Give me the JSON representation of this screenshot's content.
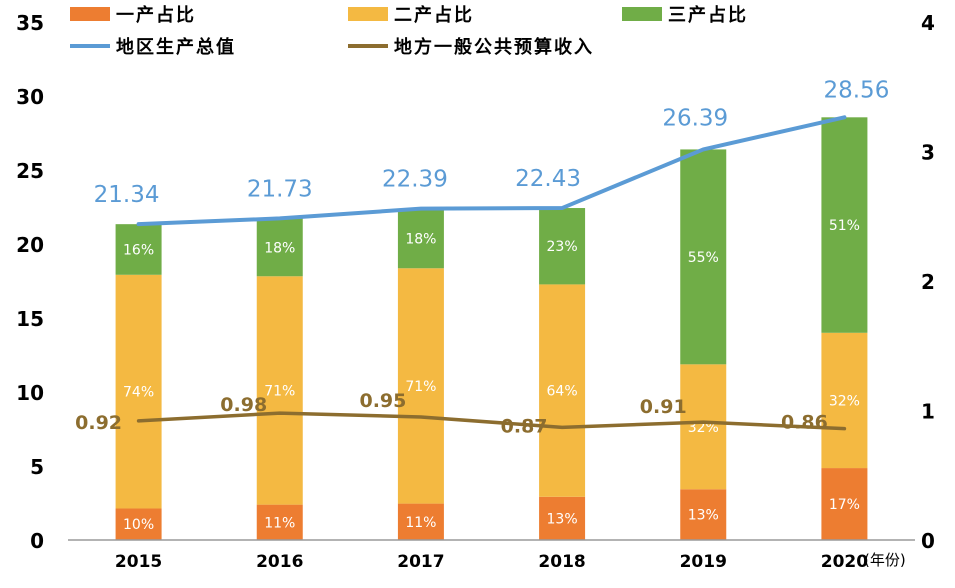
{
  "chart_data": {
    "type": "bar",
    "stacked": true,
    "categories": [
      "2015",
      "2016",
      "2017",
      "2018",
      "2019",
      "2020"
    ],
    "x_unit": "(年份)",
    "left_axis": {
      "min": 0,
      "max": 35,
      "ticks": [
        "0",
        "5",
        "10",
        "15",
        "20",
        "25",
        "30",
        "35"
      ]
    },
    "right_axis": {
      "min": 0,
      "max": 4,
      "ticks": [
        "0",
        "1",
        "2",
        "3",
        "4"
      ]
    },
    "series": [
      {
        "name": "一产占比",
        "kind": "bar",
        "color": "#ed7d31",
        "values": [
          2.13,
          2.39,
          2.46,
          2.92,
          3.43,
          4.86
        ],
        "labels": [
          "10%",
          "11%",
          "11%",
          "13%",
          "13%",
          "17%"
        ]
      },
      {
        "name": "二产占比",
        "kind": "bar",
        "color": "#f4b942",
        "values": [
          15.79,
          15.43,
          15.9,
          14.35,
          8.44,
          9.14
        ],
        "labels": [
          "74%",
          "71%",
          "71%",
          "64%",
          "32%",
          "32%"
        ]
      },
      {
        "name": "三产占比",
        "kind": "bar",
        "color": "#70ad47",
        "values": [
          3.42,
          3.91,
          4.03,
          5.16,
          14.52,
          14.56
        ],
        "labels": [
          "16%",
          "18%",
          "18%",
          "23%",
          "55%",
          "51%"
        ]
      },
      {
        "name": "地区生产总值",
        "kind": "line",
        "axis": "left",
        "color": "#5b9bd5",
        "values": [
          21.34,
          21.73,
          22.39,
          22.43,
          26.39,
          28.56
        ],
        "labels": [
          "21.34",
          "21.73",
          "22.39",
          "22.43",
          "26.39",
          "28.56"
        ]
      },
      {
        "name": "地方一般公共预算收入",
        "kind": "line",
        "axis": "right",
        "color": "#8c6d2f",
        "values": [
          0.92,
          0.98,
          0.95,
          0.87,
          0.91,
          0.86
        ],
        "labels": [
          "0.92",
          "0.98",
          "0.95",
          "0.87",
          "0.91",
          "0.86"
        ]
      }
    ],
    "legend_position": "top"
  }
}
